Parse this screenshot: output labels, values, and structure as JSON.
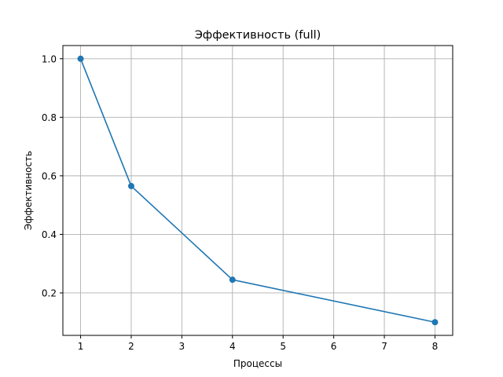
{
  "chart_data": {
    "type": "line",
    "title": "Эффективность (full)",
    "xlabel": "Процессы",
    "ylabel": "Эффективность",
    "xlim": [
      0.65,
      8.35
    ],
    "ylim": [
      0.055,
      1.045
    ],
    "x_ticks": [
      1,
      2,
      3,
      4,
      5,
      6,
      7,
      8
    ],
    "y_ticks": [
      0.2,
      0.4,
      0.6,
      0.8,
      1.0
    ],
    "grid": true,
    "series": [
      {
        "x": [
          1,
          2,
          4,
          8
        ],
        "y": [
          1.0,
          0.565,
          0.245,
          0.1
        ],
        "color": "#1f77b4",
        "marker": "circle"
      }
    ]
  }
}
